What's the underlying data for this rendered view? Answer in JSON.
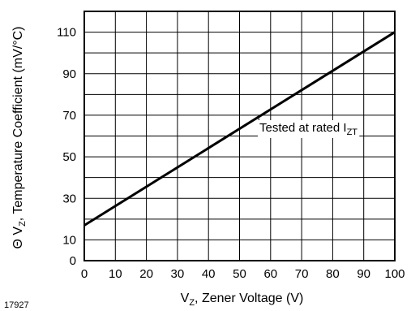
{
  "chart_data": {
    "type": "line",
    "xlabel": {
      "main": "V",
      "sub": "Z",
      "rest": ", Zener Voltage (V)"
    },
    "ylabel": {
      "prefix": "Θ V",
      "sub": "Z",
      "rest": ", Temperature Coefficient (mV/°C)"
    },
    "xlim": [
      0,
      100
    ],
    "ylim": [
      0,
      120
    ],
    "x_ticks": [
      "0",
      "10",
      "20",
      "30",
      "40",
      "50",
      "60",
      "70",
      "80",
      "90",
      "100"
    ],
    "y_ticks": [
      "0",
      "10",
      "30",
      "50",
      "70",
      "90",
      "110"
    ],
    "grid": true,
    "x": [
      0,
      100
    ],
    "series": [
      {
        "values": [
          17,
          110
        ]
      }
    ],
    "annotation": {
      "main": "Tested at rated I",
      "sub": "ZT"
    },
    "figure_id": "17927"
  }
}
